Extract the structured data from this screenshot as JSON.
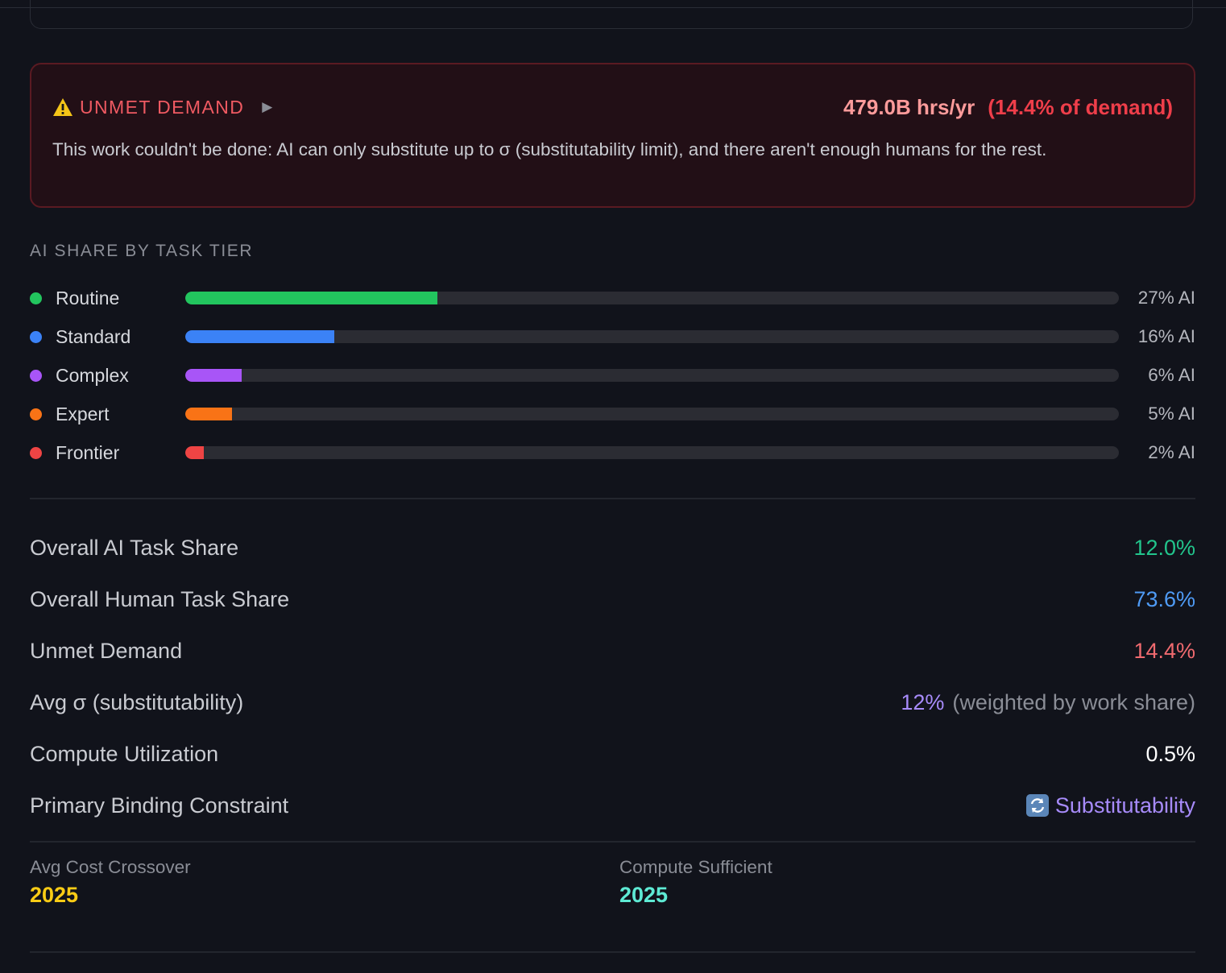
{
  "unmet_demand": {
    "title": "UNMET DEMAND",
    "hours": "479.0B hrs/yr",
    "percent": "(14.4% of demand)",
    "description": "This work couldn't be done: AI can only substitute up to σ (substitutability limit), and there aren't enough humans for the rest.",
    "icon": "warning-icon",
    "toggle_icon": "play-caret-icon"
  },
  "tier_section": {
    "heading": "AI SHARE BY TASK TIER",
    "tiers": [
      {
        "label": "Routine",
        "value": "27% AI",
        "share": 0.27,
        "color": "#22c55e"
      },
      {
        "label": "Standard",
        "value": "16% AI",
        "share": 0.16,
        "color": "#3b82f6"
      },
      {
        "label": "Complex",
        "value": "6% AI",
        "share": 0.06,
        "color": "#a855f7"
      },
      {
        "label": "Expert",
        "value": "5% AI",
        "share": 0.05,
        "color": "#f97316"
      },
      {
        "label": "Frontier",
        "value": "2% AI",
        "share": 0.02,
        "color": "#ef4444"
      }
    ]
  },
  "stats": [
    {
      "label": "Overall AI Task Share",
      "value": "12.0%",
      "color": "#22c58c"
    },
    {
      "label": "Overall Human Task Share",
      "value": "73.6%",
      "color": "#4f9bf5"
    },
    {
      "label": "Unmet Demand",
      "value": "14.4%",
      "color": "#f06a6f"
    },
    {
      "label": "Avg σ (substitutability)",
      "value": "12%",
      "note": "(weighted by work share)",
      "color": "#a78bfa"
    },
    {
      "label": "Compute Utilization",
      "value": "0.5%",
      "color": "#ffffff"
    },
    {
      "label": "Primary Binding Constraint",
      "value": "Substitutability",
      "icon": "swap-arrows-icon",
      "color": "#a78bfa"
    }
  ],
  "footer": {
    "cost_crossover_label": "Avg Cost Crossover",
    "cost_crossover_value": "2025",
    "cost_crossover_color": "#facc15",
    "compute_sufficient_label": "Compute Sufficient",
    "compute_sufficient_value": "2025",
    "compute_sufficient_color": "#5eead4"
  }
}
